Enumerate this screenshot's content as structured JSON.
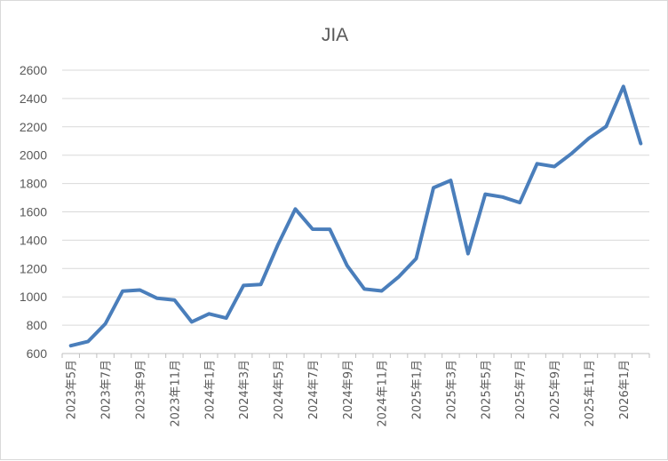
{
  "chart_data": {
    "type": "line",
    "title": "JIA",
    "xlabel": "",
    "ylabel": "",
    "ylim": [
      600,
      2600
    ],
    "yticks": [
      600,
      800,
      1000,
      1200,
      1400,
      1600,
      1800,
      2000,
      2200,
      2400,
      2600
    ],
    "grid": "horizontal",
    "legend": "none",
    "x": [
      "2023年5月",
      "2023年6月",
      "2023年7月",
      "2023年8月",
      "2023年9月",
      "2023年10月",
      "2023年11月",
      "2023年12月",
      "2024年1月",
      "2024年2月",
      "2024年3月",
      "2024年4月",
      "2024年5月",
      "2024年6月",
      "2024年7月",
      "2024年8月",
      "2024年9月",
      "2024年10月",
      "2024年11月",
      "2024年12月",
      "2025年1月",
      "2025年2月",
      "2025年3月",
      "2025年4月",
      "2025年5月",
      "2025年6月",
      "2025年7月",
      "2025年8月",
      "2025年9月",
      "2025年10月",
      "2025年11月",
      "2025年12月",
      "2026年1月",
      "2026年2月"
    ],
    "xtick_labels": [
      "2023年5月",
      "2023年7月",
      "2023年9月",
      "2023年11月",
      "2024年1月",
      "2024年3月",
      "2024年5月",
      "2024年7月",
      "2024年9月",
      "2024年11月",
      "2025年1月",
      "2025年3月",
      "2025年5月",
      "2025年7月",
      "2025年9月",
      "2025年11月",
      "2026年1月"
    ],
    "series": [
      {
        "values": [
          655,
          685,
          810,
          1040,
          1048,
          990,
          978,
          823,
          880,
          850,
          1080,
          1088,
          1370,
          1620,
          1478,
          1477,
          1220,
          1055,
          1042,
          1143,
          1270,
          1770,
          1822,
          1305,
          1725,
          1705,
          1665,
          1940,
          1920,
          2012,
          2120,
          2203,
          2485,
          2082
        ],
        "color": "#4a7ebb"
      }
    ],
    "colors": {
      "line": "#4a7ebb",
      "grid": "#d9d9d9",
      "axis": "#bfbfbf",
      "text": "#595959"
    }
  }
}
